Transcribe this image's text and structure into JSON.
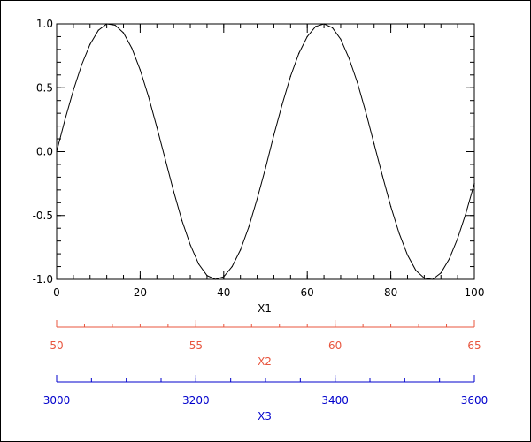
{
  "chart_data": {
    "type": "line",
    "xlabel": "X1",
    "xlim": [
      0,
      100
    ],
    "ylim": [
      -1.0,
      1.0
    ],
    "x_ticks": [
      "0",
      "20",
      "40",
      "60",
      "80",
      "100"
    ],
    "y_ticks": [
      "1.0",
      "0.5",
      "0.0",
      "-0.5",
      "-1.0"
    ],
    "x_tick_values": [
      0,
      20,
      40,
      60,
      80,
      100
    ],
    "y_tick_values": [
      1.0,
      0.5,
      0.0,
      -0.5,
      -1.0
    ],
    "x_minor_step": 4,
    "y_minor_step": 0.1,
    "grid": false,
    "series": [
      {
        "color": "#000000",
        "x": [
          0,
          2,
          4,
          6,
          8,
          10,
          12,
          14,
          16,
          18,
          20,
          22,
          24,
          26,
          28,
          30,
          32,
          34,
          36,
          38,
          40,
          42,
          44,
          46,
          48,
          50,
          52,
          54,
          56,
          58,
          60,
          62,
          64,
          66,
          68,
          70,
          72,
          74,
          76,
          78,
          80,
          82,
          84,
          86,
          88,
          90,
          92,
          94,
          96,
          98,
          100
        ],
        "y": [
          0.0,
          0.25,
          0.48,
          0.68,
          0.84,
          0.95,
          1.0,
          0.99,
          0.93,
          0.81,
          0.64,
          0.43,
          0.19,
          -0.06,
          -0.31,
          -0.54,
          -0.73,
          -0.88,
          -0.97,
          -1.0,
          -0.98,
          -0.9,
          -0.77,
          -0.59,
          -0.37,
          -0.13,
          0.13,
          0.37,
          0.59,
          0.77,
          0.9,
          0.98,
          1.0,
          0.97,
          0.88,
          0.73,
          0.54,
          0.31,
          0.06,
          -0.19,
          -0.43,
          -0.64,
          -0.81,
          -0.93,
          -0.99,
          -1.0,
          -0.95,
          -0.84,
          -0.68,
          -0.48,
          -0.25
        ]
      }
    ],
    "extra_axes": [
      {
        "label": "X2",
        "color": "#e8553e",
        "range": [
          50,
          65
        ],
        "tick_labels": [
          "50",
          "55",
          "60",
          "65"
        ],
        "tick_values": [
          50,
          55,
          60,
          65
        ],
        "minor_step": 1
      },
      {
        "label": "X3",
        "color": "#0000cc",
        "range": [
          3000,
          3600
        ],
        "tick_labels": [
          "3000",
          "3200",
          "3400",
          "3600"
        ],
        "tick_values": [
          3000,
          3200,
          3400,
          3600
        ],
        "minor_step": 50
      }
    ]
  }
}
